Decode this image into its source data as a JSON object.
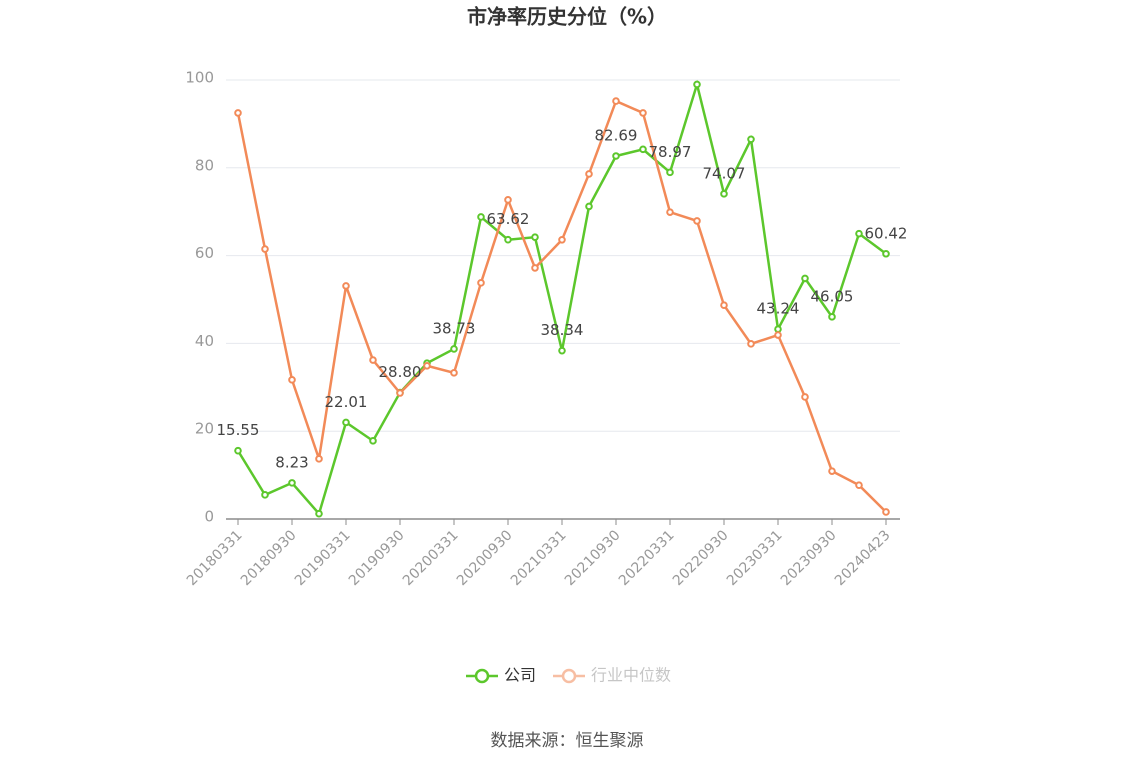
{
  "chart_data": {
    "type": "line",
    "title": "市净率历史分位（%）",
    "categories": [
      "20180331",
      null,
      "20180930",
      null,
      "20190331",
      null,
      "20190930",
      null,
      "20200331",
      null,
      "20200930",
      null,
      "20210331",
      null,
      "20210930",
      null,
      "20220331",
      null,
      "20220930",
      null,
      "20230331",
      null,
      "20230930",
      null,
      "20240423"
    ],
    "series": [
      {
        "name": "公司",
        "color": "#5cc72c",
        "values": [
          15.55,
          5.5,
          8.23,
          1.2,
          22.01,
          17.8,
          28.8,
          35.5,
          38.73,
          68.8,
          63.62,
          64.2,
          38.34,
          71.2,
          82.69,
          84.2,
          78.97,
          99.0,
          74.07,
          86.5,
          43.24,
          54.8,
          46.05,
          65.0,
          60.42
        ],
        "value_labels": [
          "15.55",
          null,
          "8.23",
          null,
          "22.01",
          null,
          "28.80",
          null,
          "38.73",
          null,
          "63.62",
          null,
          "38.34",
          null,
          "82.69",
          null,
          "78.97",
          null,
          "74.07",
          null,
          "43.24",
          null,
          "46.05",
          null,
          "60.42"
        ]
      },
      {
        "name": "行业中位数",
        "color": "#f28a58",
        "values": [
          92.5,
          61.5,
          31.7,
          13.7,
          53.1,
          36.2,
          28.7,
          34.9,
          33.3,
          53.8,
          72.7,
          57.2,
          63.6,
          78.6,
          95.2,
          92.5,
          69.9,
          67.9,
          48.7,
          39.9,
          41.9,
          27.8,
          10.9,
          7.7,
          1.6
        ]
      }
    ],
    "ylim": [
      0,
      100
    ],
    "yticks": [
      0,
      20,
      40,
      60,
      80,
      100
    ],
    "grid": true,
    "source": "数据来源：恒生聚源"
  }
}
